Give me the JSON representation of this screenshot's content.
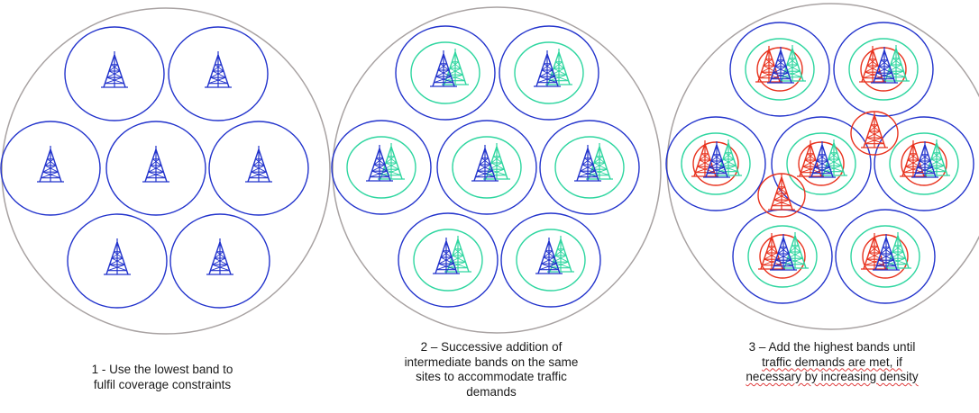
{
  "captions": [
    {
      "lines": [
        "1 - Use the lowest band to",
        "fulfil coverage constraints"
      ]
    },
    {
      "lines": [
        "2 – Successive addition of",
        "intermediate bands on the same",
        "sites to accommodate traffic",
        "demands"
      ]
    },
    {
      "lines": [
        "3 – Add the highest bands until",
        "traffic demands are met, if",
        "necessary by increasing density"
      ]
    }
  ],
  "colors": {
    "outer_circle": "#a8a2a2",
    "low_band": "#2233cc",
    "mid_band": "#2fd6a0",
    "high_band": "#e8321e"
  },
  "icons": [
    "cell-tower-icon"
  ],
  "panels": [
    {
      "step": 1,
      "cells": 7,
      "bands": [
        "low"
      ]
    },
    {
      "step": 2,
      "cells": 7,
      "bands": [
        "low",
        "mid"
      ]
    },
    {
      "step": 3,
      "cells": 7,
      "extra_cells": 2,
      "bands": [
        "low",
        "mid",
        "high"
      ]
    }
  ]
}
